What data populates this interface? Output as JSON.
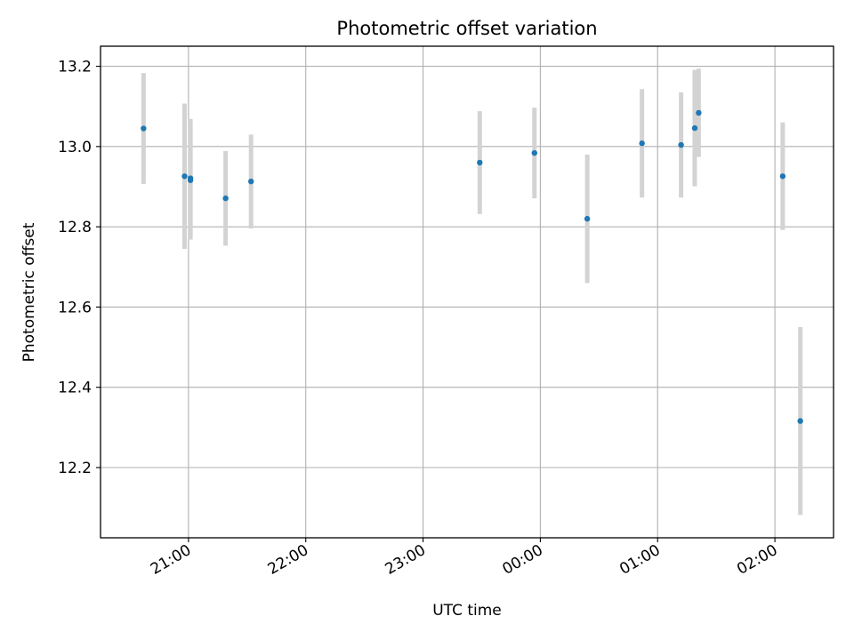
{
  "chart_data": {
    "type": "scatter",
    "title": "Photometric offset variation",
    "xlabel": "UTC time",
    "ylabel": "Photometric offset",
    "x_unit": "UTC",
    "x_ticks": [
      "21:00",
      "22:00",
      "23:00",
      "00:00",
      "01:00",
      "02:00"
    ],
    "xlim": [
      "20:15",
      "02:30"
    ],
    "ylim": [
      12.025,
      13.25
    ],
    "y_ticks": [
      12.2,
      12.4,
      12.6,
      12.8,
      13.0,
      13.2
    ],
    "grid": true,
    "series": [
      {
        "color": "#1f77b4",
        "errorbar_color": "#d3d3d3",
        "points": [
          {
            "x": "20:37",
            "y": 13.045,
            "err": 0.138
          },
          {
            "x": "20:58",
            "y": 12.926,
            "err": 0.181
          },
          {
            "x": "21:01",
            "y": 12.921,
            "err": 0.148
          },
          {
            "x": "21:01",
            "y": 12.916,
            "err": 0.148
          },
          {
            "x": "21:19",
            "y": 12.871,
            "err": 0.118
          },
          {
            "x": "21:32",
            "y": 12.913,
            "err": 0.117
          },
          {
            "x": "23:29",
            "y": 12.96,
            "err": 0.128
          },
          {
            "x": "23:57",
            "y": 12.984,
            "err": 0.113
          },
          {
            "x": "00:24",
            "y": 12.82,
            "err": 0.16
          },
          {
            "x": "00:52",
            "y": 13.008,
            "err": 0.135
          },
          {
            "x": "01:12",
            "y": 13.004,
            "err": 0.131
          },
          {
            "x": "01:19",
            "y": 13.046,
            "err": 0.145
          },
          {
            "x": "01:21",
            "y": 13.084,
            "err": 0.11
          },
          {
            "x": "02:04",
            "y": 12.926,
            "err": 0.134
          },
          {
            "x": "02:13",
            "y": 12.316,
            "err": 0.234
          }
        ]
      }
    ]
  }
}
